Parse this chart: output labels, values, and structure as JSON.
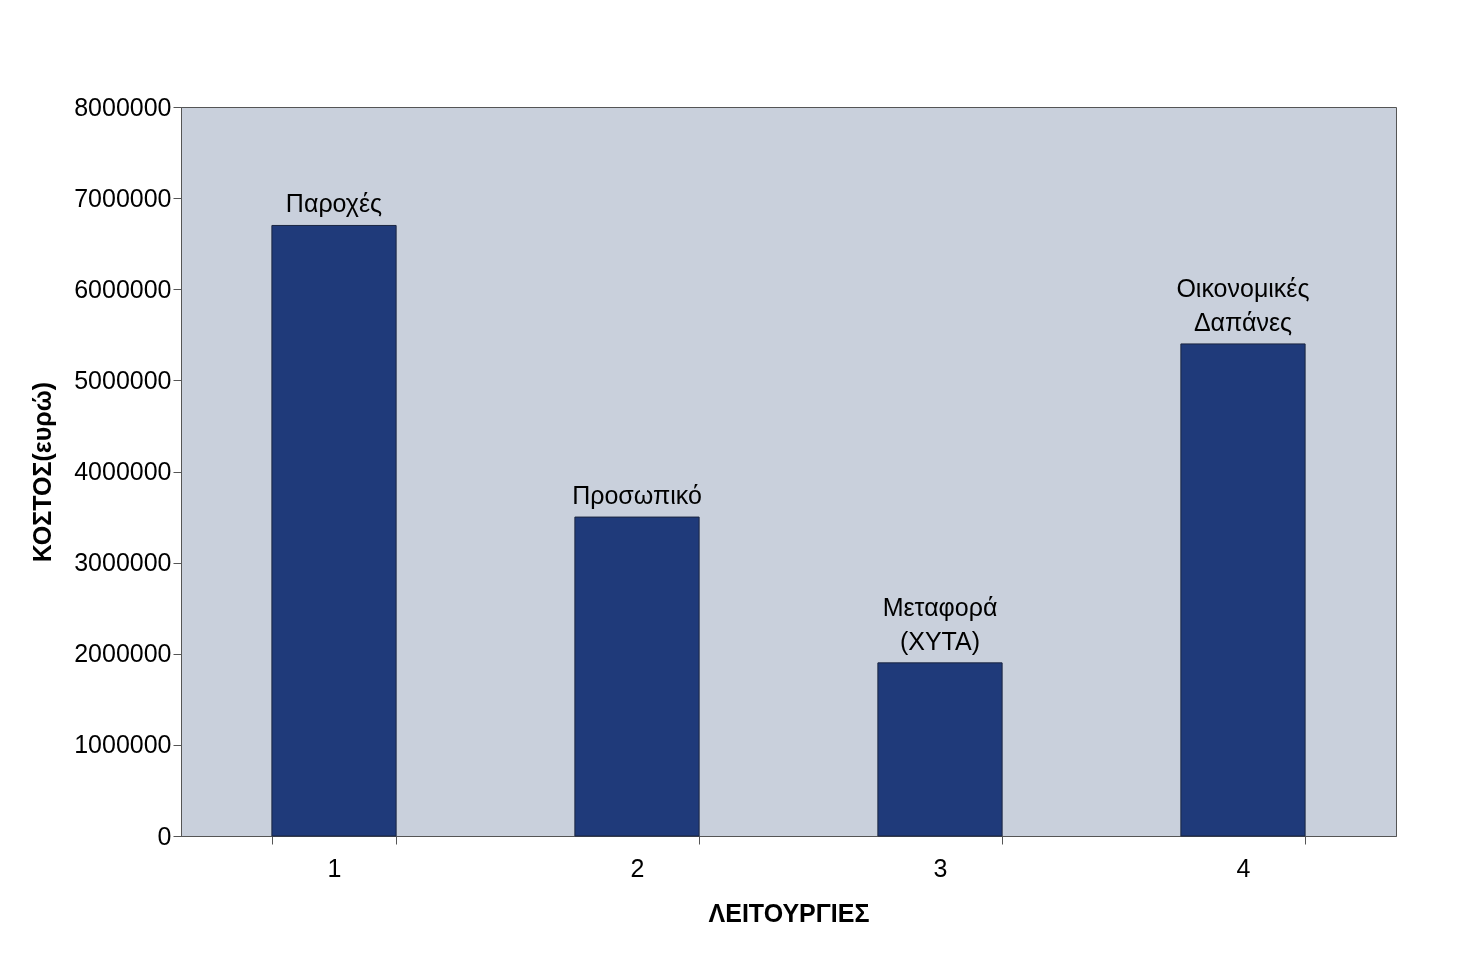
{
  "chart_data": {
    "type": "bar",
    "xlabel": "ΛΕΙΤΟΥΡΓΙΕΣ",
    "ylabel": "ΚΟΣΤΟΣ(ευρώ)",
    "categories": [
      "1",
      "2",
      "3",
      "4"
    ],
    "values": [
      6700000,
      3500000,
      1900000,
      5400000
    ],
    "color": "#1f3a7a",
    "ylim": [
      0,
      8000000
    ],
    "yticks": [
      0,
      1000000,
      2000000,
      3000000,
      4000000,
      5000000,
      6000000,
      7000000,
      8000000
    ],
    "grid": false,
    "annotations": [
      {
        "text": "Παροχές",
        "x": "1",
        "y": 6700000
      },
      {
        "text": "Προσωπικό",
        "x": "2",
        "y": 3500000
      },
      {
        "text": "Μεταφορά\n(ΧΥΤΑ)",
        "x": "3",
        "y": 1900000
      },
      {
        "text": "Οικονομικές\nΔαπάνες",
        "x": "4",
        "y": 5400000
      }
    ]
  }
}
